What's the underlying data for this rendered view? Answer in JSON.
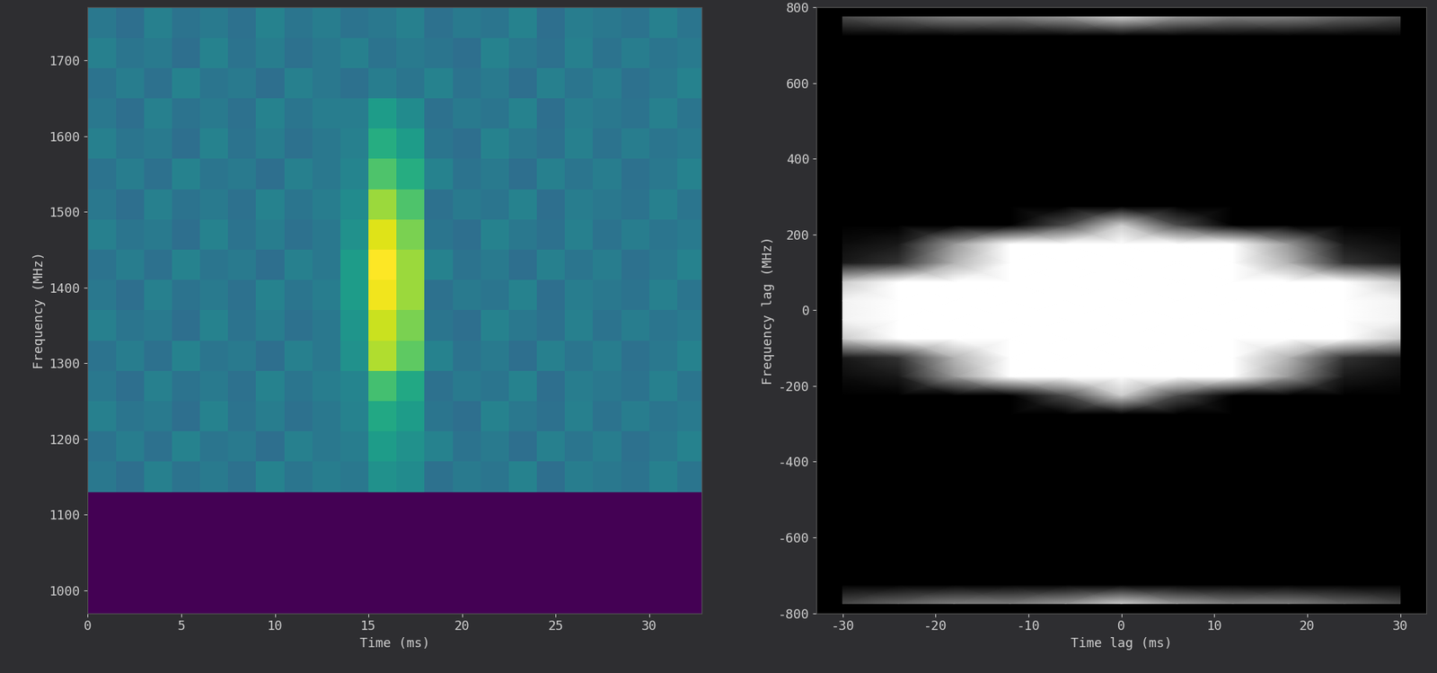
{
  "chart_data": [
    {
      "type": "heatmap",
      "xlabel": "Time (ms)",
      "ylabel": "Frequency (MHz)",
      "x_edges": [
        0,
        1.5,
        3,
        4.5,
        6,
        7.5,
        9,
        10.5,
        12,
        13.5,
        15,
        16.5,
        18,
        19.5,
        21,
        22.5,
        24,
        25.5,
        27,
        28.5,
        30,
        31.5,
        33
      ],
      "y_edges": [
        970,
        1010,
        1050,
        1090,
        1130,
        1170,
        1210,
        1250,
        1290,
        1330,
        1370,
        1410,
        1450,
        1490,
        1530,
        1570,
        1610,
        1650,
        1690,
        1730,
        1770
      ],
      "xlim": [
        0,
        32.8
      ],
      "ylim": [
        970,
        1770
      ],
      "xticks": [
        0,
        5,
        10,
        15,
        20,
        25,
        30
      ],
      "yticks": [
        1000,
        1100,
        1200,
        1300,
        1400,
        1500,
        1600,
        1700
      ],
      "zlim": [
        0,
        1
      ],
      "cells": [
        [
          null,
          null,
          null,
          null,
          null,
          null,
          null,
          null,
          null,
          null,
          null,
          null,
          null,
          null,
          null,
          null,
          null,
          null,
          null,
          null,
          null,
          null
        ],
        [
          null,
          null,
          null,
          null,
          null,
          null,
          null,
          null,
          null,
          null,
          null,
          null,
          null,
          null,
          null,
          null,
          null,
          null,
          null,
          null,
          null,
          null
        ],
        [
          null,
          null,
          null,
          null,
          null,
          null,
          null,
          null,
          null,
          null,
          null,
          null,
          null,
          null,
          null,
          null,
          null,
          null,
          null,
          null,
          null,
          null
        ],
        [
          null,
          null,
          null,
          null,
          null,
          null,
          null,
          null,
          null,
          null,
          null,
          null,
          null,
          null,
          null,
          null,
          null,
          null,
          null,
          null,
          null,
          null
        ],
        [
          0.4,
          0.36,
          0.43,
          0.38,
          0.41,
          0.37,
          0.44,
          0.39,
          0.42,
          0.4,
          0.5,
          0.48,
          0.37,
          0.41,
          0.39,
          0.44,
          0.36,
          0.42,
          0.4,
          0.38,
          0.43,
          0.39
        ],
        [
          0.38,
          0.42,
          0.37,
          0.44,
          0.39,
          0.41,
          0.36,
          0.43,
          0.4,
          0.42,
          0.55,
          0.5,
          0.44,
          0.38,
          0.41,
          0.36,
          0.43,
          0.39,
          0.42,
          0.37,
          0.4,
          0.44
        ],
        [
          0.43,
          0.39,
          0.41,
          0.36,
          0.44,
          0.38,
          0.42,
          0.37,
          0.4,
          0.44,
          0.6,
          0.55,
          0.39,
          0.36,
          0.44,
          0.4,
          0.37,
          0.43,
          0.38,
          0.42,
          0.39,
          0.41
        ],
        [
          0.4,
          0.36,
          0.43,
          0.38,
          0.41,
          0.37,
          0.44,
          0.39,
          0.42,
          0.45,
          0.7,
          0.6,
          0.37,
          0.41,
          0.39,
          0.44,
          0.36,
          0.42,
          0.4,
          0.38,
          0.43,
          0.39
        ],
        [
          0.38,
          0.42,
          0.37,
          0.44,
          0.39,
          0.41,
          0.36,
          0.43,
          0.4,
          0.5,
          0.88,
          0.75,
          0.44,
          0.38,
          0.41,
          0.36,
          0.43,
          0.39,
          0.42,
          0.37,
          0.4,
          0.44
        ],
        [
          0.43,
          0.39,
          0.41,
          0.36,
          0.44,
          0.38,
          0.42,
          0.37,
          0.4,
          0.52,
          0.92,
          0.8,
          0.39,
          0.36,
          0.44,
          0.4,
          0.37,
          0.43,
          0.38,
          0.42,
          0.39,
          0.41
        ],
        [
          0.4,
          0.36,
          0.43,
          0.38,
          0.41,
          0.37,
          0.44,
          0.39,
          0.42,
          0.55,
          0.98,
          0.85,
          0.37,
          0.41,
          0.39,
          0.44,
          0.36,
          0.42,
          0.4,
          0.38,
          0.43,
          0.39
        ],
        [
          0.38,
          0.42,
          0.37,
          0.44,
          0.39,
          0.41,
          0.36,
          0.43,
          0.4,
          0.55,
          1.0,
          0.85,
          0.44,
          0.38,
          0.41,
          0.36,
          0.43,
          0.39,
          0.42,
          0.37,
          0.4,
          0.44
        ],
        [
          0.43,
          0.39,
          0.41,
          0.36,
          0.44,
          0.38,
          0.42,
          0.37,
          0.4,
          0.5,
          0.95,
          0.8,
          0.39,
          0.36,
          0.44,
          0.4,
          0.37,
          0.43,
          0.38,
          0.42,
          0.39,
          0.41
        ],
        [
          0.4,
          0.36,
          0.43,
          0.38,
          0.41,
          0.37,
          0.44,
          0.39,
          0.42,
          0.48,
          0.85,
          0.72,
          0.37,
          0.41,
          0.39,
          0.44,
          0.36,
          0.42,
          0.4,
          0.38,
          0.43,
          0.39
        ],
        [
          0.38,
          0.42,
          0.37,
          0.44,
          0.39,
          0.41,
          0.36,
          0.43,
          0.4,
          0.45,
          0.72,
          0.62,
          0.44,
          0.38,
          0.41,
          0.36,
          0.43,
          0.39,
          0.42,
          0.37,
          0.4,
          0.44
        ],
        [
          0.43,
          0.39,
          0.41,
          0.36,
          0.44,
          0.38,
          0.42,
          0.37,
          0.4,
          0.43,
          0.62,
          0.55,
          0.39,
          0.36,
          0.44,
          0.4,
          0.37,
          0.43,
          0.38,
          0.42,
          0.39,
          0.41
        ],
        [
          0.4,
          0.36,
          0.43,
          0.38,
          0.41,
          0.37,
          0.44,
          0.39,
          0.42,
          0.42,
          0.55,
          0.48,
          0.37,
          0.41,
          0.39,
          0.44,
          0.36,
          0.42,
          0.4,
          0.38,
          0.43,
          0.39
        ],
        [
          0.38,
          0.42,
          0.37,
          0.44,
          0.39,
          0.41,
          0.36,
          0.43,
          0.4,
          0.37,
          0.42,
          0.39,
          0.44,
          0.38,
          0.41,
          0.36,
          0.43,
          0.39,
          0.42,
          0.37,
          0.4,
          0.44
        ],
        [
          0.43,
          0.39,
          0.41,
          0.36,
          0.44,
          0.38,
          0.42,
          0.37,
          0.4,
          0.43,
          0.38,
          0.41,
          0.39,
          0.36,
          0.44,
          0.4,
          0.37,
          0.43,
          0.38,
          0.42,
          0.39,
          0.41
        ],
        [
          0.4,
          0.36,
          0.43,
          0.38,
          0.41,
          0.37,
          0.44,
          0.39,
          0.42,
          0.38,
          0.4,
          0.43,
          0.37,
          0.41,
          0.39,
          0.44,
          0.36,
          0.42,
          0.4,
          0.38,
          0.43,
          0.39
        ]
      ]
    },
    {
      "type": "heatmap",
      "xlabel": "Time lag (ms)",
      "ylabel": "Frequency lag (MHz)",
      "x_edges": [
        -33,
        -27,
        -21,
        -15,
        -9,
        -3,
        3,
        9,
        15,
        21,
        27,
        33
      ],
      "y_edges": [
        -800,
        -750,
        -700,
        -650,
        -600,
        -550,
        -500,
        -450,
        -400,
        -350,
        -300,
        -250,
        -200,
        -150,
        -100,
        -50,
        0,
        50,
        100,
        150,
        200,
        250,
        300,
        350,
        400,
        450,
        500,
        550,
        600,
        650,
        700,
        750,
        800
      ],
      "xlim": [
        -32.8,
        32.8
      ],
      "ylim": [
        -800,
        800
      ],
      "xticks": [
        -30,
        -20,
        -10,
        0,
        10,
        20,
        30
      ],
      "yticks": [
        -800,
        -600,
        -400,
        -200,
        0,
        200,
        400,
        600,
        800
      ],
      "zlim": [
        0,
        1
      ],
      "cells": [
        [
          0.3,
          0.4,
          0.5,
          0.5,
          0.6,
          0.8,
          0.6,
          0.5,
          0.5,
          0.4,
          0.3
        ],
        [
          0,
          0,
          0,
          0,
          0,
          0,
          0,
          0,
          0,
          0,
          0
        ],
        [
          0,
          0,
          0,
          0,
          0,
          0,
          0,
          0,
          0,
          0,
          0
        ],
        [
          0,
          0,
          0,
          0,
          0,
          0,
          0,
          0,
          0,
          0,
          0
        ],
        [
          0,
          0,
          0,
          0,
          0,
          0,
          0,
          0,
          0,
          0,
          0
        ],
        [
          0,
          0,
          0,
          0,
          0,
          0,
          0,
          0,
          0,
          0,
          0
        ],
        [
          0,
          0,
          0,
          0,
          0,
          0,
          0,
          0,
          0,
          0,
          0
        ],
        [
          0,
          0,
          0,
          0,
          0,
          0,
          0,
          0,
          0,
          0,
          0
        ],
        [
          0,
          0,
          0,
          0,
          0,
          0,
          0,
          0,
          0,
          0,
          0
        ],
        [
          0,
          0,
          0,
          0,
          0,
          0,
          0,
          0,
          0,
          0,
          0
        ],
        [
          0,
          0,
          0,
          0,
          0,
          0,
          0,
          0,
          0,
          0,
          0
        ],
        [
          0,
          0,
          0,
          0,
          0.3,
          0.8,
          0.3,
          0,
          0,
          0,
          0
        ],
        [
          0.05,
          0.1,
          0.6,
          1,
          1,
          1,
          1,
          1,
          0.6,
          0.1,
          0.05
        ],
        [
          0.1,
          0.2,
          0.7,
          1,
          1,
          1,
          1,
          1,
          0.7,
          0.2,
          0.1
        ],
        [
          0.8,
          1,
          1,
          1,
          1,
          1,
          1,
          1,
          1,
          1,
          0.8
        ],
        [
          0.95,
          1,
          1,
          1,
          1,
          1,
          1,
          1,
          1,
          1,
          0.95
        ],
        [
          0.95,
          1,
          1,
          1,
          1,
          1,
          1,
          1,
          1,
          1,
          0.95
        ],
        [
          0.8,
          1,
          1,
          1,
          1,
          1,
          1,
          1,
          1,
          1,
          0.8
        ],
        [
          0.1,
          0.2,
          0.7,
          1,
          1,
          1,
          1,
          1,
          0.7,
          0.2,
          0.1
        ],
        [
          0.05,
          0.1,
          0.6,
          1,
          1,
          1,
          1,
          1,
          0.6,
          0.1,
          0.05
        ],
        [
          0,
          0,
          0,
          0,
          0.3,
          0.8,
          0.3,
          0,
          0,
          0,
          0
        ],
        [
          0,
          0,
          0,
          0,
          0,
          0,
          0,
          0,
          0,
          0,
          0
        ],
        [
          0,
          0,
          0,
          0,
          0,
          0,
          0,
          0,
          0,
          0,
          0
        ],
        [
          0,
          0,
          0,
          0,
          0,
          0,
          0,
          0,
          0,
          0,
          0
        ],
        [
          0,
          0,
          0,
          0,
          0,
          0,
          0,
          0,
          0,
          0,
          0
        ],
        [
          0,
          0,
          0,
          0,
          0,
          0,
          0,
          0,
          0,
          0,
          0
        ],
        [
          0,
          0,
          0,
          0,
          0,
          0,
          0,
          0,
          0,
          0,
          0
        ],
        [
          0,
          0,
          0,
          0,
          0,
          0,
          0,
          0,
          0,
          0,
          0
        ],
        [
          0,
          0,
          0,
          0,
          0,
          0,
          0,
          0,
          0,
          0,
          0
        ],
        [
          0,
          0,
          0,
          0,
          0,
          0,
          0,
          0,
          0,
          0,
          0
        ],
        [
          0,
          0,
          0,
          0,
          0,
          0,
          0,
          0,
          0,
          0,
          0
        ],
        [
          0.3,
          0.4,
          0.5,
          0.5,
          0.6,
          0.8,
          0.6,
          0.5,
          0.5,
          0.4,
          0.3
        ]
      ]
    }
  ]
}
